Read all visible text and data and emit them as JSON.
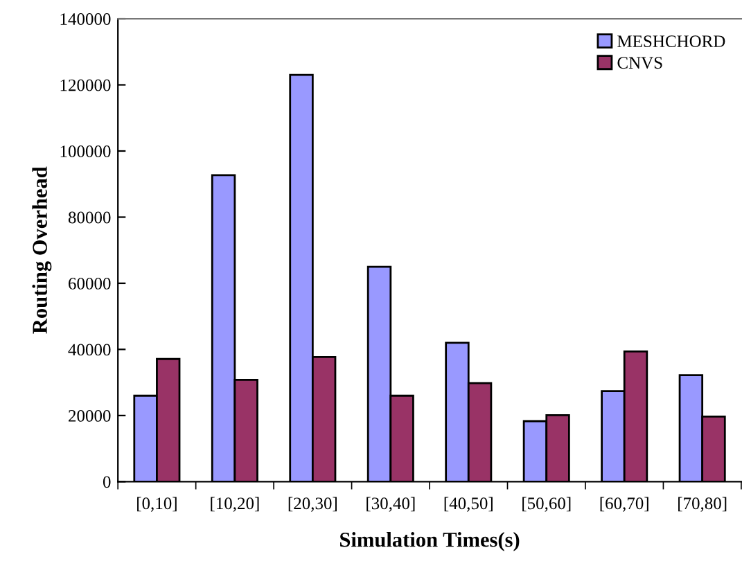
{
  "chart_data": {
    "type": "bar",
    "xlabel": "Simulation Times(s)",
    "ylabel": "Routing Overhead",
    "categories": [
      "[0,10]",
      "[10,20]",
      "[20,30]",
      "[30,40]",
      "[40,50]",
      "[50,60]",
      "[60,70]",
      "[70,80]"
    ],
    "series": [
      {
        "name": "MESHCHORD",
        "color": "#9999ff",
        "values": [
          26000,
          92700,
          123000,
          65000,
          42000,
          18300,
          27400,
          32200
        ]
      },
      {
        "name": "CNVS",
        "color": "#993366",
        "values": [
          37100,
          30800,
          37700,
          26000,
          29800,
          20100,
          39400,
          19700
        ]
      }
    ],
    "ylim": [
      0,
      140000
    ],
    "yticks": [
      0,
      20000,
      40000,
      60000,
      80000,
      100000,
      120000,
      140000
    ],
    "grid": false,
    "legend": "top right"
  }
}
